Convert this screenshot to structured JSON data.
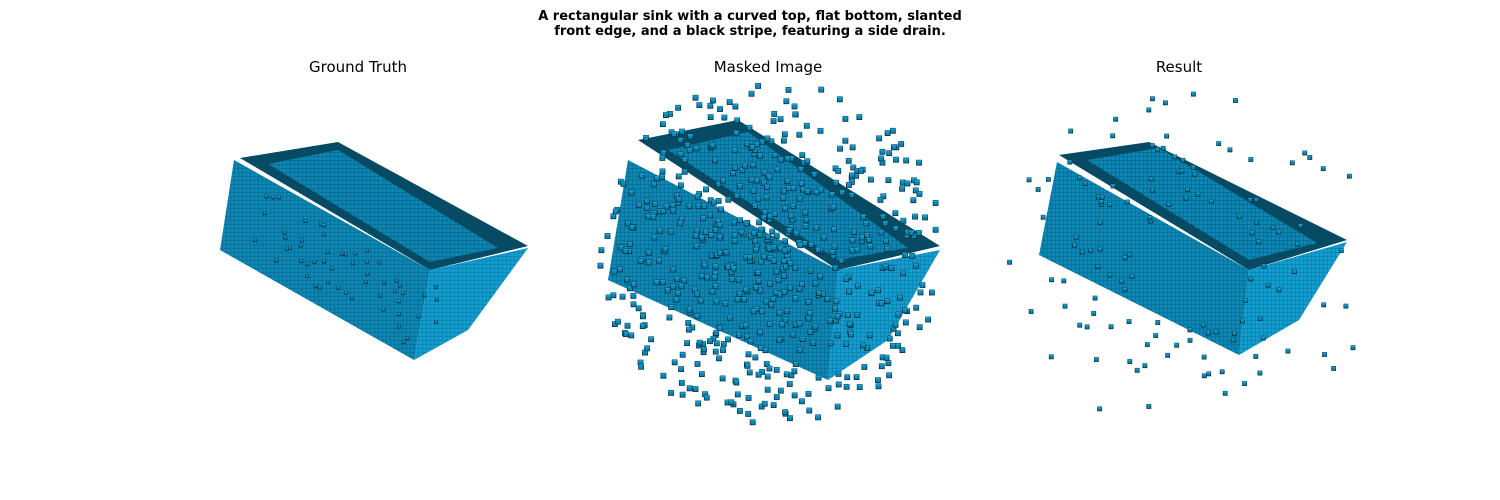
{
  "figure": {
    "title_line1": "A rectangular sink with a curved top, flat bottom, slanted",
    "title_line2": "front edge, and a black stripe, featuring a side drain."
  },
  "panels": [
    {
      "title": "Ground Truth"
    },
    {
      "title": "Masked Image"
    },
    {
      "title": "Result"
    }
  ],
  "colors": {
    "voxel_face": "#0c86b4",
    "voxel_light": "#129dd0",
    "voxel_dark": "#064a63",
    "edge": "#03303f",
    "background": "#ffffff"
  }
}
